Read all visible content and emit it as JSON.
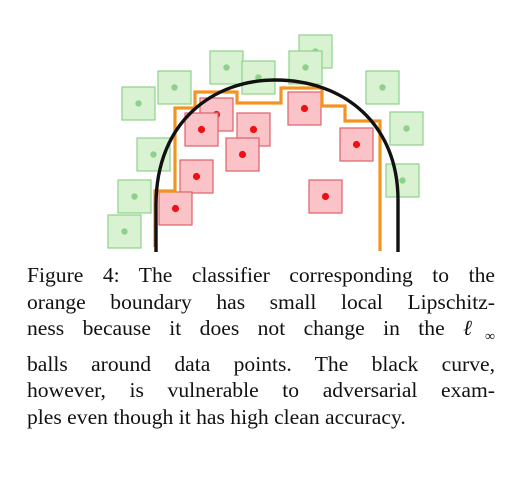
{
  "colors": {
    "green_box_fill": "#d9f2d2",
    "green_box_stroke": "#8fd18a",
    "green_point": "#8fd18a",
    "red_box_fill": "#f9c3c8",
    "red_box_stroke": "#e0606c",
    "red_point": "#ee1111",
    "orange_boundary": "#f39422",
    "black_curve": "#111111"
  },
  "caption": {
    "label": "Figure 4:",
    "line1": "The classifier corresponding to the",
    "line2": "orange boundary has small local Lipschitz-",
    "line3a": "ness because it does not change in the ",
    "ell": "ℓ",
    "inf": "∞",
    "line4": "balls around data points.  The black curve,",
    "line5": "however, is vulnerable to adversarial exam-",
    "line6": "ples even though it has high clean accuracy."
  }
}
